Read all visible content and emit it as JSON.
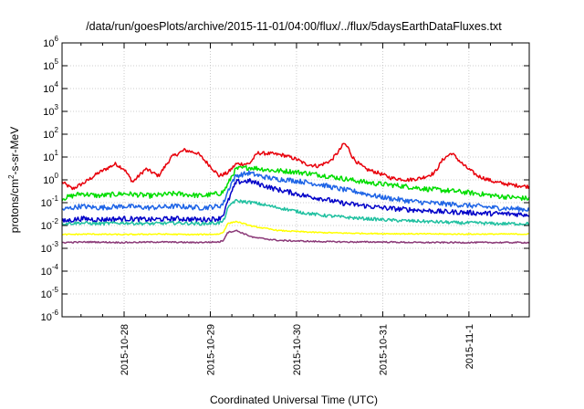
{
  "chart_data": {
    "type": "line",
    "title": "/data/run/goesPlots/archive/2015-11-01/04:00/flux/../flux/5daysEarthDataFluxes.txt",
    "xlabel": "Coordinated Universal Time (UTC)",
    "ylabel": "protons/cm2-s-sr-MeV",
    "ylabel_parts": {
      "base": "protons/cm",
      "sup": "2",
      "rest": "-s-sr-MeV"
    },
    "yscale": "log",
    "ylim": [
      1e-06,
      1000000.0
    ],
    "xlim": [
      -0.72,
      4.7
    ],
    "grid": true,
    "x_ticks": [
      {
        "value": 0,
        "label": "2015-10-28"
      },
      {
        "value": 1,
        "label": "2015-10-29"
      },
      {
        "value": 2,
        "label": "2015-10-30"
      },
      {
        "value": 3,
        "label": "2015-10-31"
      },
      {
        "value": 4,
        "label": "2015-11-1"
      }
    ],
    "y_ticks": [
      {
        "value": -6,
        "base": "10",
        "exp": "-6"
      },
      {
        "value": -5,
        "base": "10",
        "exp": "-5"
      },
      {
        "value": -4,
        "base": "10",
        "exp": "-4"
      },
      {
        "value": -3,
        "base": "10",
        "exp": "-3"
      },
      {
        "value": -2,
        "base": "10",
        "exp": "-2"
      },
      {
        "value": -1,
        "base": "10",
        "exp": "-1"
      },
      {
        "value": 0,
        "base": "10",
        "exp": "0"
      },
      {
        "value": 1,
        "base": "10",
        "exp": "1"
      },
      {
        "value": 2,
        "base": "10",
        "exp": "2"
      },
      {
        "value": 3,
        "base": "10",
        "exp": "3"
      },
      {
        "value": 4,
        "base": "10",
        "exp": "4"
      },
      {
        "value": 5,
        "base": "10",
        "exp": "5"
      },
      {
        "value": 6,
        "base": "10",
        "exp": "6"
      }
    ],
    "series": [
      {
        "color": "#e8000b",
        "x": [
          -0.72,
          -0.6,
          -0.45,
          -0.3,
          -0.1,
          0.0,
          0.1,
          0.25,
          0.4,
          0.55,
          0.7,
          0.85,
          1.0,
          1.1,
          1.2,
          1.3,
          1.45,
          1.55,
          1.7,
          1.85,
          2.0,
          2.1,
          2.25,
          2.4,
          2.5,
          2.55,
          2.6,
          2.65,
          2.7,
          2.8,
          2.95,
          3.1,
          3.3,
          3.45,
          3.6,
          3.7,
          3.8,
          3.95,
          4.1,
          4.3,
          4.5,
          4.7
        ],
        "y": [
          0.8,
          0.4,
          0.8,
          2,
          5,
          3,
          0.8,
          3,
          1.5,
          10,
          20,
          15,
          4,
          1.5,
          2,
          5,
          5,
          15,
          14,
          12,
          8,
          5,
          4,
          7,
          20,
          40,
          25,
          10,
          6,
          3,
          2,
          1.2,
          1,
          1.2,
          2,
          8,
          15,
          4,
          1.5,
          0.8,
          0.6,
          0.5
        ]
      },
      {
        "color": "#00dd00",
        "x": [
          -0.72,
          -0.5,
          -0.3,
          0.0,
          0.3,
          0.6,
          0.9,
          1.1,
          1.15,
          1.2,
          1.25,
          1.3,
          1.45,
          1.6,
          1.75,
          1.9,
          2.1,
          2.3,
          2.5,
          2.7,
          2.9,
          3.1,
          3.3,
          3.5,
          3.7,
          3.9,
          4.1,
          4.3,
          4.5,
          4.7
        ],
        "y": [
          0.15,
          0.25,
          0.2,
          0.25,
          0.2,
          0.25,
          0.2,
          0.25,
          0.3,
          0.6,
          1.5,
          3,
          3.5,
          3,
          2.5,
          2.4,
          2,
          1.6,
          1.2,
          0.9,
          0.7,
          0.6,
          0.5,
          0.4,
          0.35,
          0.3,
          0.25,
          0.2,
          0.17,
          0.15
        ]
      },
      {
        "color": "#1e64e6",
        "x": [
          -0.72,
          -0.5,
          -0.3,
          0.0,
          0.3,
          0.6,
          0.9,
          1.1,
          1.15,
          1.2,
          1.25,
          1.3,
          1.45,
          1.6,
          1.75,
          1.9,
          2.1,
          2.3,
          2.5,
          2.7,
          2.9,
          3.1,
          3.3,
          3.5,
          3.7,
          3.9,
          4.1,
          4.3,
          4.5,
          4.7
        ],
        "y": [
          0.05,
          0.07,
          0.06,
          0.07,
          0.06,
          0.07,
          0.06,
          0.07,
          0.09,
          0.3,
          0.8,
          1.5,
          2,
          1.4,
          1.1,
          1,
          0.8,
          0.6,
          0.4,
          0.3,
          0.2,
          0.15,
          0.12,
          0.1,
          0.09,
          0.08,
          0.07,
          0.06,
          0.055,
          0.05
        ]
      },
      {
        "color": "#0000c8",
        "x": [
          -0.72,
          -0.5,
          -0.3,
          0.0,
          0.3,
          0.6,
          0.9,
          1.1,
          1.15,
          1.2,
          1.25,
          1.3,
          1.45,
          1.6,
          1.75,
          1.9,
          2.1,
          2.3,
          2.5,
          2.7,
          2.9,
          3.1,
          3.3,
          3.5,
          3.7,
          3.9,
          4.1,
          4.3,
          4.5,
          4.7
        ],
        "y": [
          0.015,
          0.02,
          0.018,
          0.02,
          0.018,
          0.02,
          0.018,
          0.02,
          0.03,
          0.1,
          0.3,
          0.8,
          0.9,
          0.6,
          0.4,
          0.3,
          0.2,
          0.15,
          0.1,
          0.08,
          0.065,
          0.055,
          0.05,
          0.045,
          0.04,
          0.038,
          0.035,
          0.033,
          0.032,
          0.03
        ]
      },
      {
        "color": "#20c0a0",
        "x": [
          -0.72,
          -0.5,
          -0.3,
          0.0,
          0.3,
          0.6,
          0.9,
          1.1,
          1.15,
          1.2,
          1.25,
          1.3,
          1.5,
          1.7,
          1.9,
          2.1,
          2.3,
          2.5,
          2.7,
          2.9,
          3.1,
          3.3,
          3.5,
          3.7,
          3.9,
          4.1,
          4.3,
          4.5,
          4.7
        ],
        "y": [
          0.012,
          0.013,
          0.012,
          0.013,
          0.012,
          0.013,
          0.012,
          0.013,
          0.015,
          0.05,
          0.1,
          0.12,
          0.1,
          0.07,
          0.05,
          0.035,
          0.028,
          0.024,
          0.021,
          0.019,
          0.017,
          0.016,
          0.015,
          0.014,
          0.013,
          0.013,
          0.012,
          0.012,
          0.012
        ]
      },
      {
        "color": "#ffff00",
        "x": [
          -0.72,
          -0.4,
          0.0,
          0.4,
          0.8,
          1.1,
          1.15,
          1.2,
          1.3,
          1.5,
          1.8,
          2.2,
          2.6,
          3.0,
          3.4,
          3.8,
          4.2,
          4.7
        ],
        "y": [
          0.004,
          0.0042,
          0.004,
          0.0042,
          0.004,
          0.0042,
          0.005,
          0.012,
          0.015,
          0.009,
          0.006,
          0.005,
          0.0046,
          0.0044,
          0.0043,
          0.0042,
          0.0042,
          0.0042
        ]
      },
      {
        "color": "#8b3a78",
        "x": [
          -0.72,
          -0.4,
          0.0,
          0.4,
          0.8,
          1.1,
          1.15,
          1.2,
          1.3,
          1.5,
          1.8,
          2.2,
          2.6,
          3.0,
          3.4,
          3.8,
          4.2,
          4.7
        ],
        "y": [
          0.0018,
          0.0019,
          0.0018,
          0.0019,
          0.0018,
          0.0019,
          0.0022,
          0.005,
          0.006,
          0.003,
          0.0022,
          0.002,
          0.0019,
          0.0019,
          0.0018,
          0.0018,
          0.0018,
          0.0018
        ]
      }
    ]
  }
}
